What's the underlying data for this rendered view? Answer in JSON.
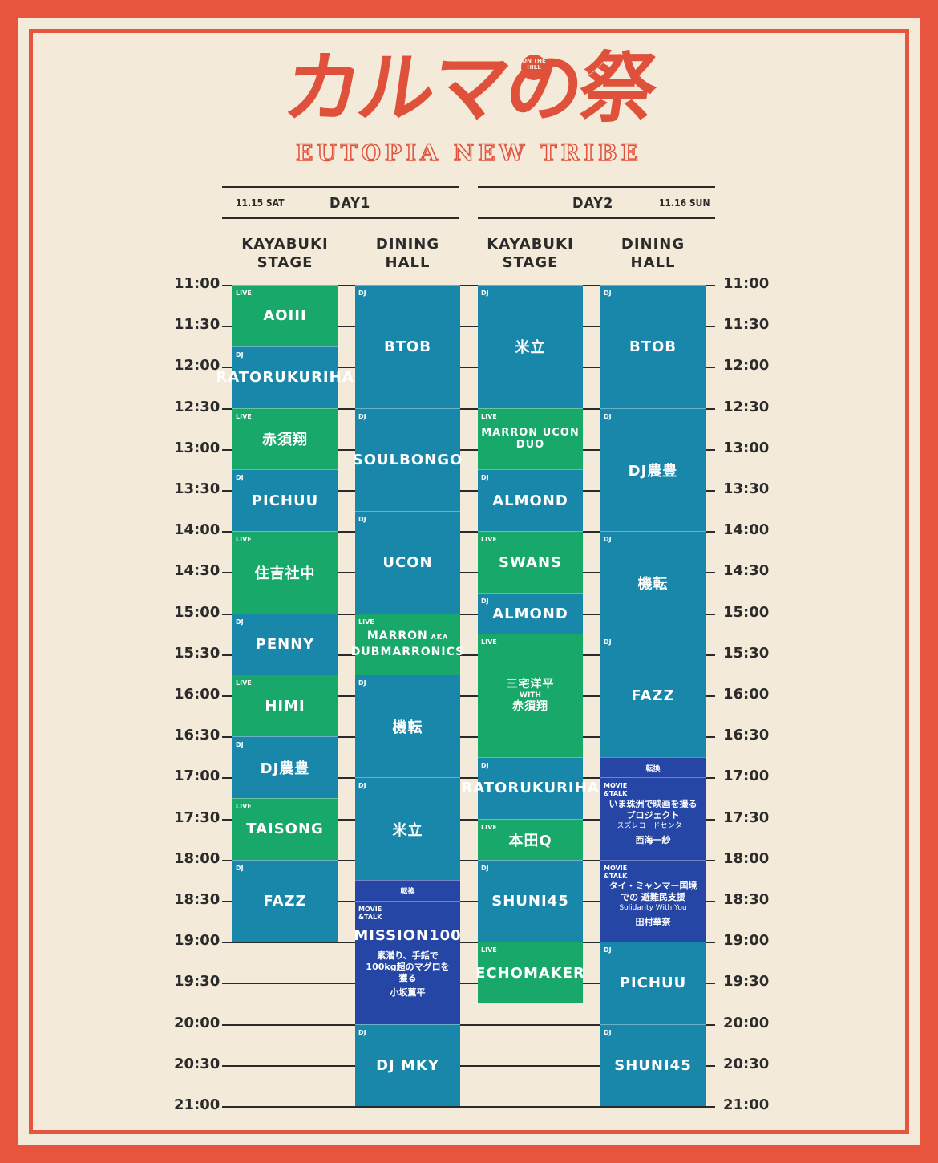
{
  "logo": {
    "title": "カルマの祭",
    "badge": "ON THE HILL",
    "subtitle": "EUTOPIA NEW TRIBE"
  },
  "day1": {
    "date": "11.15 SAT",
    "label": "DAY1"
  },
  "day2": {
    "date": "11.16 SUN",
    "label": "DAY2"
  },
  "columns": [
    "KAYABUKI\nSTAGE",
    "DINING\nHALL",
    "KAYABUKI\nSTAGE",
    "DINING\nHALL"
  ],
  "times": [
    "11:00",
    "11:30",
    "12:00",
    "12:30",
    "13:00",
    "13:30",
    "14:00",
    "14:30",
    "15:00",
    "15:30",
    "16:00",
    "16:30",
    "17:00",
    "17:30",
    "18:00",
    "18:30",
    "19:00",
    "19:30",
    "20:00",
    "20:30",
    "21:00"
  ],
  "schedule": {
    "d1_kayabuki": [
      {
        "start": "11:00",
        "end": "11:45",
        "tag": "LIVE",
        "name": "AOIII",
        "type": "green"
      },
      {
        "start": "11:45",
        "end": "12:30",
        "tag": "DJ",
        "name": "RATORUKURIHA",
        "type": "teal"
      },
      {
        "start": "12:30",
        "end": "13:15",
        "tag": "LIVE",
        "name": "赤須翔",
        "type": "green"
      },
      {
        "start": "13:15",
        "end": "14:00",
        "tag": "DJ",
        "name": "PICHUU",
        "type": "teal"
      },
      {
        "start": "14:00",
        "end": "15:00",
        "tag": "LIVE",
        "name": "住吉社中",
        "type": "green"
      },
      {
        "start": "15:00",
        "end": "15:45",
        "tag": "DJ",
        "name": "PENNY",
        "type": "teal"
      },
      {
        "start": "15:45",
        "end": "16:30",
        "tag": "LIVE",
        "name": "HIMI",
        "type": "green"
      },
      {
        "start": "16:30",
        "end": "17:15",
        "tag": "DJ",
        "name": "DJ農豊",
        "type": "teal"
      },
      {
        "start": "17:15",
        "end": "18:00",
        "tag": "LIVE",
        "name": "TAISONG",
        "type": "green"
      },
      {
        "start": "18:00",
        "end": "19:00",
        "tag": "DJ",
        "name": "FAZZ",
        "type": "teal"
      }
    ],
    "d1_dining": [
      {
        "start": "11:00",
        "end": "12:30",
        "tag": "DJ",
        "name": "BTOB",
        "type": "teal"
      },
      {
        "start": "12:30",
        "end": "13:45",
        "tag": "DJ",
        "name": "SOULBONGO",
        "type": "teal"
      },
      {
        "start": "13:45",
        "end": "15:00",
        "tag": "DJ",
        "name": "UCON",
        "type": "teal"
      },
      {
        "start": "15:00",
        "end": "15:45",
        "tag": "LIVE",
        "name": "MARRON",
        "aka": "AKA",
        "name2": "DUBMARRONICS",
        "type": "green"
      },
      {
        "start": "15:45",
        "end": "17:00",
        "tag": "DJ",
        "name": "機転",
        "type": "teal"
      },
      {
        "start": "17:00",
        "end": "18:15",
        "tag": "DJ",
        "name": "米立",
        "type": "teal"
      },
      {
        "start": "18:15",
        "end": "18:30",
        "center": "転換",
        "type": "navy"
      },
      {
        "start": "18:30",
        "end": "20:00",
        "tag": "MOVIE &TALK",
        "name": "MISSION100",
        "sub": "素潜り、手銛で 100kg超のマグロを獲る",
        "person": "小坂薫平",
        "type": "navy"
      },
      {
        "start": "20:00",
        "end": "21:00",
        "tag": "DJ",
        "name": "DJ MKY",
        "type": "teal"
      }
    ],
    "d2_kayabuki": [
      {
        "start": "11:00",
        "end": "12:30",
        "tag": "DJ",
        "name": "米立",
        "type": "teal"
      },
      {
        "start": "12:30",
        "end": "13:15",
        "tag": "LIVE",
        "name": "MARRON UCON DUO",
        "type": "green"
      },
      {
        "start": "13:15",
        "end": "14:00",
        "tag": "DJ",
        "name": "ALMOND",
        "type": "teal"
      },
      {
        "start": "14:00",
        "end": "14:45",
        "tag": "LIVE",
        "name": "SWANS",
        "type": "green"
      },
      {
        "start": "14:45",
        "end": "15:15",
        "tag": "DJ",
        "name": "ALMOND",
        "type": "teal"
      },
      {
        "start": "15:15",
        "end": "16:45",
        "tag": "LIVE",
        "name": "三宅洋平",
        "with": "WITH",
        "name2": "赤須翔",
        "type": "green"
      },
      {
        "start": "16:45",
        "end": "17:30",
        "tag": "DJ",
        "name": "RATORUKURIHA",
        "type": "teal"
      },
      {
        "start": "17:30",
        "end": "18:00",
        "tag": "LIVE",
        "name": "本田Q",
        "type": "green"
      },
      {
        "start": "18:00",
        "end": "19:00",
        "tag": "DJ",
        "name": "SHUNI45",
        "type": "teal"
      },
      {
        "start": "19:00",
        "end": "19:45",
        "tag": "LIVE",
        "name": "ECHOMAKER",
        "type": "green"
      }
    ],
    "d2_dining": [
      {
        "start": "11:00",
        "end": "12:30",
        "tag": "DJ",
        "name": "BTOB",
        "type": "teal"
      },
      {
        "start": "12:30",
        "end": "14:00",
        "tag": "DJ",
        "name": "DJ農豊",
        "type": "teal"
      },
      {
        "start": "14:00",
        "end": "15:15",
        "tag": "DJ",
        "name": "機転",
        "type": "teal"
      },
      {
        "start": "15:15",
        "end": "16:45",
        "tag": "DJ",
        "name": "FAZZ",
        "type": "teal"
      },
      {
        "start": "16:45",
        "end": "17:00",
        "center": "転換",
        "type": "navy"
      },
      {
        "start": "17:00",
        "end": "18:00",
        "tag": "MOVIE &TALK",
        "sub": "いま珠洲で映画を撮る プロジェクト",
        "sub2": "スズレコードセンター",
        "person": "西海一紗",
        "type": "navy"
      },
      {
        "start": "18:00",
        "end": "19:00",
        "tag": "MOVIE &TALK",
        "sub": "タイ・ミャンマー国境での 避難民支援",
        "sub2": "Solidarity With You",
        "person": "田村華奈",
        "type": "navy"
      },
      {
        "start": "19:00",
        "end": "20:00",
        "tag": "DJ",
        "name": "PICHUU",
        "type": "teal"
      },
      {
        "start": "20:00",
        "end": "21:00",
        "tag": "DJ",
        "name": "SHUNI45",
        "type": "teal"
      }
    ]
  }
}
